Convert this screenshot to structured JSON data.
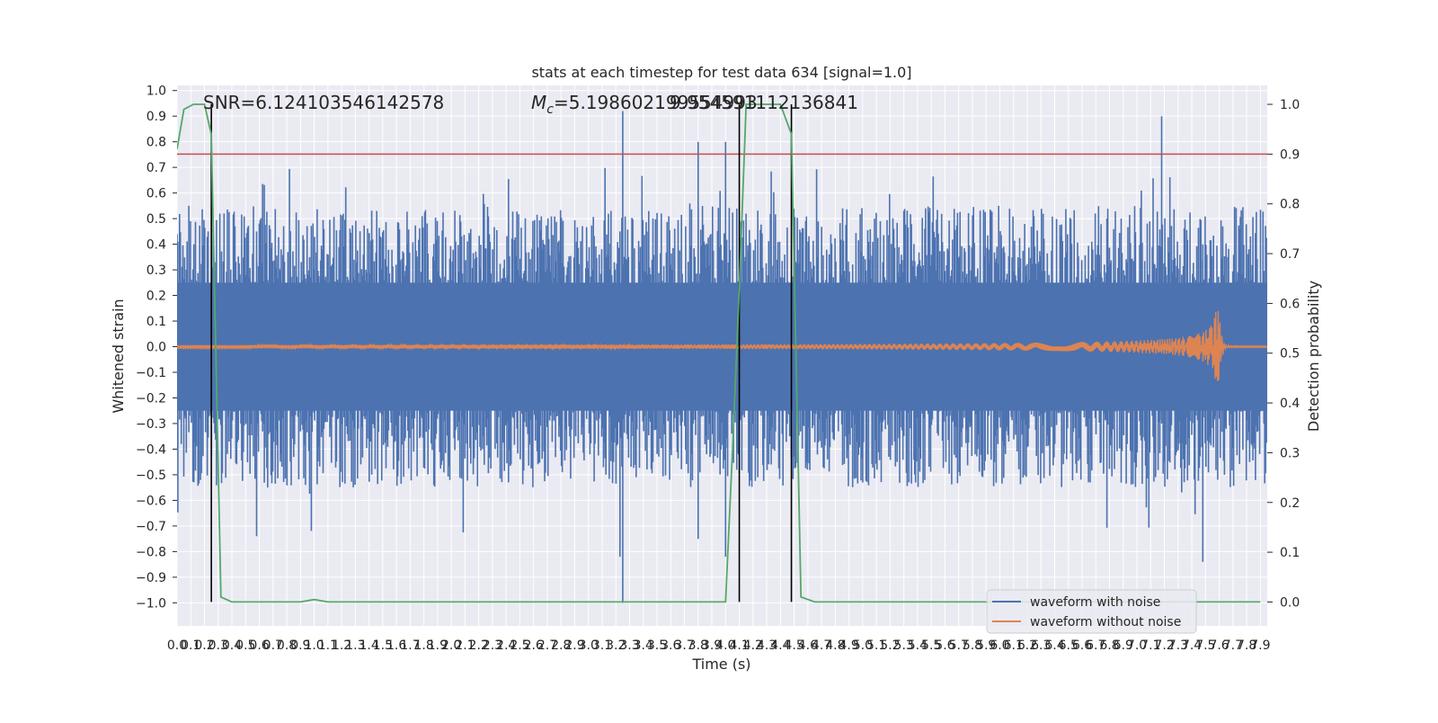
{
  "chart_data": {
    "type": "line",
    "title": "stats at each timestep for test data 634 [signal=1.0]",
    "xlabel": "Time (s)",
    "ylabel_left": "Whitened strain",
    "ylabel_right": "Detection probability",
    "xlim": [
      0.0,
      7.95
    ],
    "ylim_left": [
      -1.09,
      1.02
    ],
    "ylim_right": [
      -0.048,
      1.038
    ],
    "x_ticks": [
      "0.0",
      "0.1",
      "0.2",
      "0.3",
      "0.4",
      "0.5",
      "0.6",
      "0.7",
      "0.8",
      "0.9",
      "1.0",
      "1.1",
      "1.2",
      "1.3",
      "1.4",
      "1.5",
      "1.6",
      "1.7",
      "1.8",
      "1.9",
      "2.0",
      "2.1",
      "2.2",
      "2.3",
      "2.4",
      "2.5",
      "2.6",
      "2.7",
      "2.8",
      "2.9",
      "3.0",
      "3.1",
      "3.2",
      "3.3",
      "3.4",
      "3.5",
      "3.6",
      "3.7",
      "3.8",
      "3.9",
      "4.0",
      "4.1",
      "4.2",
      "4.3",
      "4.4",
      "4.5",
      "4.6",
      "4.7",
      "4.8",
      "4.9",
      "5.0",
      "5.1",
      "5.2",
      "5.3",
      "5.4",
      "5.5",
      "5.6",
      "5.7",
      "5.8",
      "5.9",
      "6.0",
      "6.1",
      "6.2",
      "6.3",
      "6.4",
      "6.5",
      "6.6",
      "6.7",
      "6.8",
      "6.9",
      "7.0",
      "7.1",
      "7.2",
      "7.3",
      "7.4",
      "7.5",
      "7.6",
      "7.7",
      "7.8",
      "7.9"
    ],
    "y_ticks_left": [
      "−1.0",
      "−0.9",
      "−0.8",
      "−0.7",
      "−0.6",
      "−0.5",
      "−0.4",
      "−0.3",
      "−0.2",
      "−0.1",
      "0.0",
      "0.1",
      "0.2",
      "0.3",
      "0.4",
      "0.5",
      "0.6",
      "0.7",
      "0.8",
      "0.9",
      "1.0"
    ],
    "y_ticks_right": [
      "0.0",
      "0.1",
      "0.2",
      "0.3",
      "0.4",
      "0.5",
      "0.6",
      "0.7",
      "0.8",
      "0.9",
      "1.0"
    ],
    "annotations": {
      "snr": "SNR=6.124103546142578",
      "mc_prefix": "M",
      "mc_sub": "c",
      "mc_value": "=5.198602199554993",
      "overlap": "9.954591112136841"
    },
    "threshold": {
      "value": 0.9,
      "axis": "right",
      "color": "#c44e52"
    },
    "vertical_markers_s": [
      0.25,
      4.1,
      4.48
    ],
    "series": [
      {
        "name": "waveform with noise",
        "axis": "left",
        "color": "#4c72b0",
        "description_range": [
          -1.0,
          0.92
        ]
      },
      {
        "name": "waveform without noise",
        "axis": "left",
        "color": "#dd8452",
        "chirp_peak_time_s": 7.6,
        "chirp_peak_amplitude": 0.15
      },
      {
        "name": "detection probability",
        "axis": "right",
        "color": "#55a868",
        "x": [
          0.0,
          0.05,
          0.12,
          0.2,
          0.25,
          0.32,
          0.4,
          0.6,
          0.9,
          1.0,
          1.1,
          1.5,
          2.0,
          3.0,
          4.0,
          4.05,
          4.1,
          4.15,
          4.2,
          4.3,
          4.4,
          4.48,
          4.55,
          4.65,
          5.0,
          6.0,
          7.0,
          7.9
        ],
        "values": [
          0.91,
          0.99,
          1.0,
          1.0,
          0.94,
          0.01,
          0.0,
          0.0,
          0.0,
          0.005,
          0.0,
          0.0,
          0.0,
          0.0,
          0.0,
          0.3,
          0.63,
          1.0,
          1.0,
          1.0,
          1.0,
          0.94,
          0.01,
          0.0,
          0.0,
          0.0,
          0.0,
          0.0
        ]
      }
    ],
    "legend": {
      "location": "lower-right",
      "entries": [
        "waveform with noise",
        "waveform without noise"
      ]
    }
  }
}
